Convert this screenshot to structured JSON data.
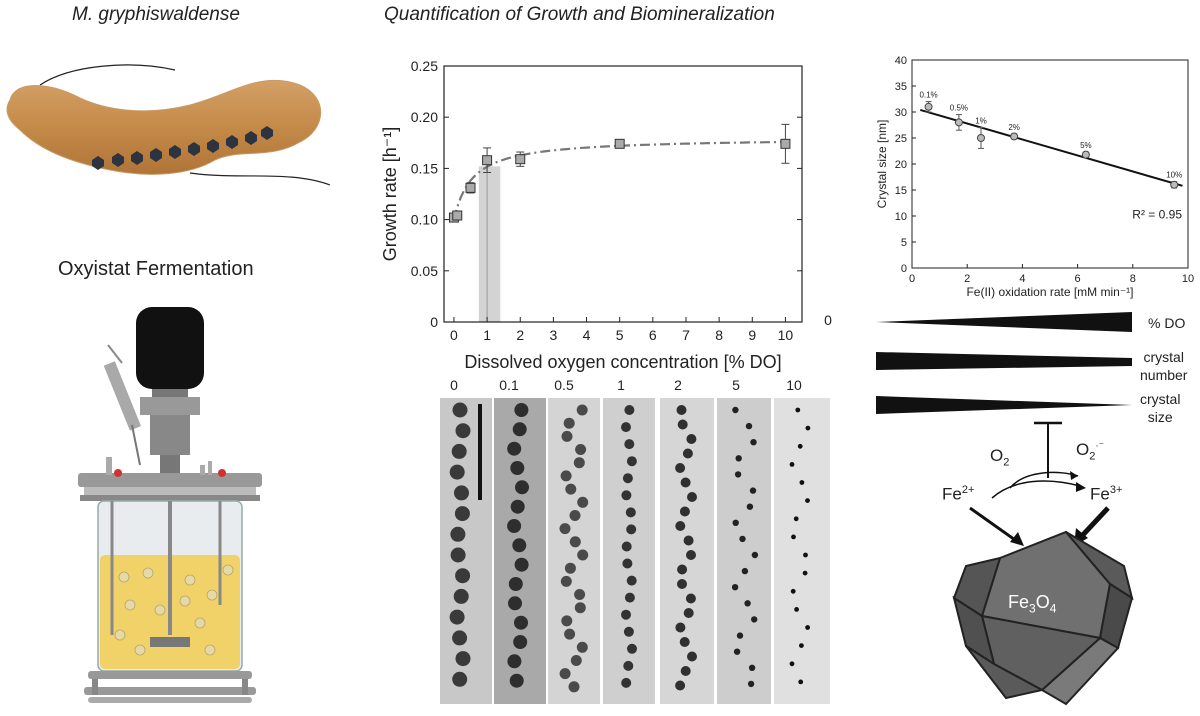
{
  "left": {
    "organism_title": "M. gryphiswaldense",
    "fermentation_title": "Oxyistat Fermentation"
  },
  "center": {
    "title": "Quantification of Growth and Biomineralization"
  },
  "growth_chart": {
    "type": "line",
    "ylabel": "Growth rate [h⁻¹]",
    "xlabel": "Dissolved oxygen concentration [% DO]",
    "xlim": [
      -0.3,
      10.5
    ],
    "ylim": [
      0,
      0.25
    ],
    "x_ticks": [
      "0",
      "1",
      "2",
      "3",
      "4",
      "5",
      "6",
      "7",
      "8",
      "9",
      "10"
    ],
    "y_ticks": [
      "0",
      "0.05",
      "0.10",
      "0.15",
      "0.20",
      "0.25"
    ],
    "right_axis_label": "0",
    "points": [
      {
        "x": 0,
        "y": 0.102,
        "err": 0.003
      },
      {
        "x": 0.1,
        "y": 0.104,
        "err": 0.004
      },
      {
        "x": 0.5,
        "y": 0.131,
        "err": 0.005
      },
      {
        "x": 1,
        "y": 0.158,
        "err": 0.012
      },
      {
        "x": 2,
        "y": 0.159,
        "err": 0.007
      },
      {
        "x": 5,
        "y": 0.174,
        "err": 0.002
      },
      {
        "x": 10,
        "y": 0.174,
        "err": 0.019
      }
    ],
    "shaded_region": [
      0.75,
      1.4
    ]
  },
  "crystal_chart": {
    "type": "scatter",
    "ylabel": "Crystal size [nm]",
    "xlabel": "Fe(II) oxidation rate [mM min⁻¹]",
    "xlim": [
      0,
      10
    ],
    "ylim": [
      0,
      40
    ],
    "x_ticks": [
      "0",
      "2",
      "4",
      "6",
      "8",
      "10"
    ],
    "y_ticks": [
      "0",
      "5",
      "10",
      "15",
      "20",
      "25",
      "30",
      "35",
      "40"
    ],
    "points": [
      {
        "x": 0.6,
        "y": 31.0,
        "err": 1.0,
        "label": "0.1%"
      },
      {
        "x": 1.7,
        "y": 28.0,
        "err": 1.5,
        "label": "0.5%"
      },
      {
        "x": 2.5,
        "y": 25.0,
        "err": 2.0,
        "label": "1%"
      },
      {
        "x": 3.7,
        "y": 25.3,
        "err": 0.5,
        "label": "2%"
      },
      {
        "x": 6.3,
        "y": 21.8,
        "err": 0.5,
        "label": "5%"
      },
      {
        "x": 9.5,
        "y": 16.0,
        "err": 0.6,
        "label": "10%"
      }
    ],
    "fit": {
      "x0": 0.3,
      "y0": 30.4,
      "x1": 9.8,
      "y1": 15.8
    },
    "r2_label": "R² = 0.95"
  },
  "tem": {
    "labels": [
      "0",
      "0.1",
      "0.5",
      "1",
      "2",
      "5",
      "10"
    ]
  },
  "wedges": {
    "do_label": "% DO",
    "number_label_1": "crystal",
    "number_label_2": "number",
    "size_label_1": "crystal",
    "size_label_2": "size"
  },
  "reaction": {
    "o2": "O",
    "o2_sub": "2",
    "superoxide": "O",
    "superoxide_sub": "2",
    "superoxide_sup": "·⁻",
    "fe2": "Fe",
    "fe2_sup": "2+",
    "fe3": "Fe",
    "fe3_sup": "3+",
    "magnetite_1": "Fe",
    "magnetite_sub1": "3",
    "magnetite_2": "O",
    "magnetite_sub2": "4"
  }
}
